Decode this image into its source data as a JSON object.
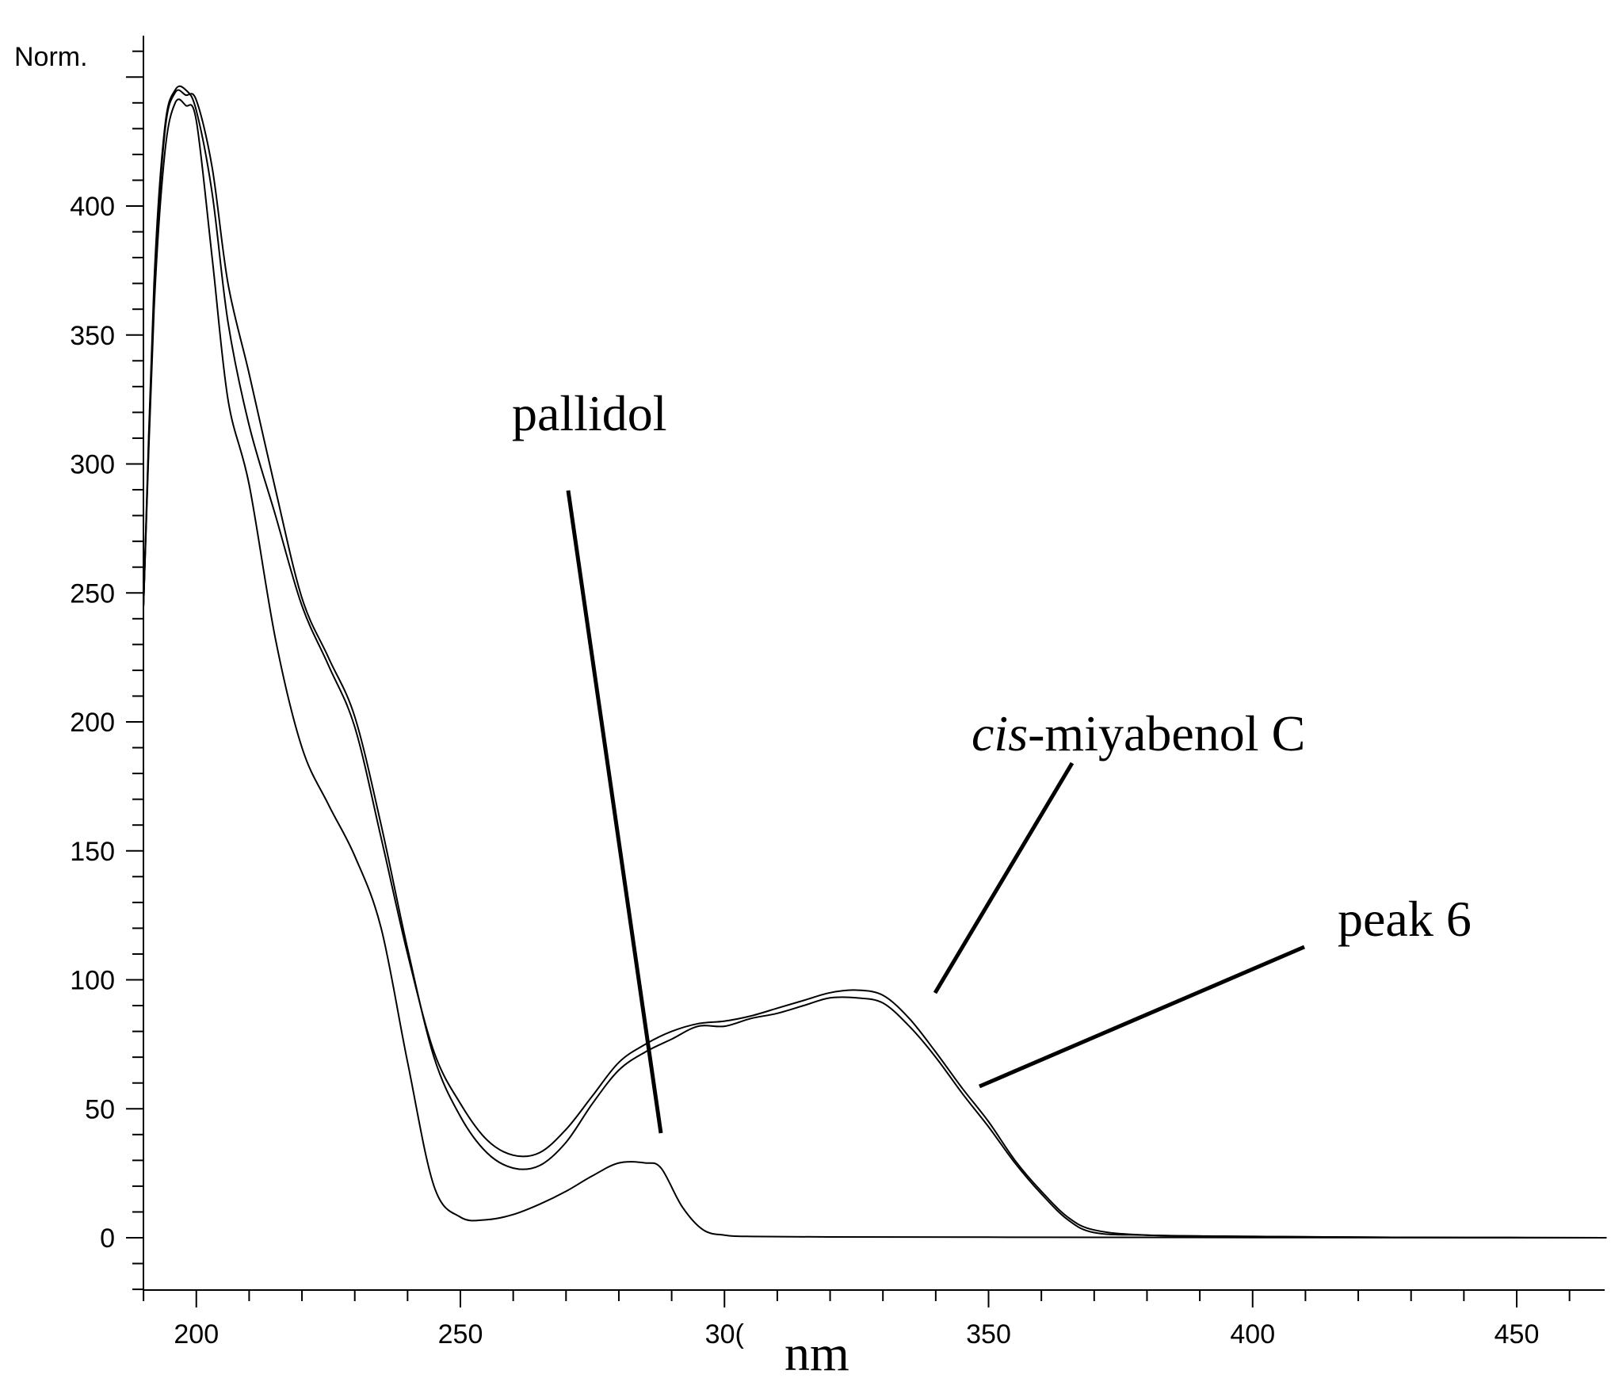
{
  "chart_data": {
    "type": "line",
    "title": "",
    "ylabel": "Norm.",
    "xlabel": "nm",
    "xlim": [
      190,
      467
    ],
    "ylim": [
      -22,
      465
    ],
    "xticks": [
      200,
      250,
      "30(",
      350,
      400,
      450
    ],
    "yticks": [
      0,
      50,
      100,
      150,
      200,
      250,
      300,
      350,
      400
    ],
    "grid": false,
    "legend": "none",
    "annotations": [
      {
        "text_italic": "cis",
        "text": "-miyabenol C",
        "target": "cis-miyabenol C"
      },
      {
        "text": "peak 6",
        "target": "peak 6"
      },
      {
        "text": "pallidol",
        "target": "pallidol"
      }
    ],
    "series": [
      {
        "name": "cis-miyabenol C",
        "color": "#000000",
        "x": [
          190,
          192,
          194,
          196,
          198,
          200,
          203,
          206,
          210,
          215,
          220,
          225,
          230,
          235,
          240,
          245,
          250,
          255,
          260,
          265,
          270,
          275,
          280,
          285,
          290,
          295,
          300,
          305,
          310,
          315,
          320,
          325,
          330,
          335,
          340,
          345,
          350,
          355,
          360,
          365,
          370,
          380,
          400,
          420,
          440,
          467
        ],
        "y": [
          245,
          370,
          430,
          445,
          445,
          437,
          405,
          355,
          315,
          280,
          245,
          222,
          198,
          155,
          110,
          72,
          52,
          38,
          32,
          33,
          42,
          55,
          68,
          75,
          80,
          83,
          84,
          86,
          89,
          92,
          95,
          96,
          94,
          85,
          72,
          58,
          45,
          30,
          18,
          8,
          3,
          1,
          0.5,
          0.2,
          0.1,
          0
        ]
      },
      {
        "name": "peak 6",
        "color": "#000000",
        "x": [
          190,
          192,
          194,
          196,
          198,
          200,
          203,
          206,
          210,
          215,
          220,
          225,
          230,
          235,
          240,
          245,
          250,
          255,
          260,
          265,
          270,
          275,
          280,
          285,
          290,
          295,
          300,
          305,
          310,
          315,
          320,
          325,
          330,
          335,
          340,
          345,
          350,
          355,
          360,
          365,
          370,
          380,
          400,
          420,
          440,
          467
        ],
        "y": [
          245,
          365,
          428,
          444,
          443,
          441,
          415,
          370,
          335,
          290,
          248,
          225,
          202,
          160,
          112,
          70,
          47,
          33,
          27,
          28,
          37,
          52,
          65,
          72,
          77,
          82,
          82,
          85,
          87,
          90,
          93,
          93,
          91,
          82,
          70,
          56,
          43,
          29,
          17,
          7,
          2,
          1,
          0.5,
          0.2,
          0.1,
          0
        ]
      },
      {
        "name": "pallidol",
        "color": "#000000",
        "x": [
          190,
          192,
          194,
          196,
          198,
          200,
          203,
          206,
          210,
          215,
          220,
          225,
          230,
          235,
          240,
          245,
          250,
          255,
          260,
          265,
          270,
          275,
          280,
          285,
          288,
          292,
          296,
          300,
          305,
          320,
          350,
          400,
          467
        ],
        "y": [
          245,
          360,
          420,
          440,
          439,
          433,
          380,
          325,
          292,
          232,
          190,
          168,
          148,
          120,
          68,
          20,
          8,
          7,
          9,
          13,
          18,
          24,
          29,
          29,
          27,
          12,
          3,
          1,
          0.5,
          0.3,
          0.2,
          0.1,
          0
        ]
      }
    ]
  }
}
